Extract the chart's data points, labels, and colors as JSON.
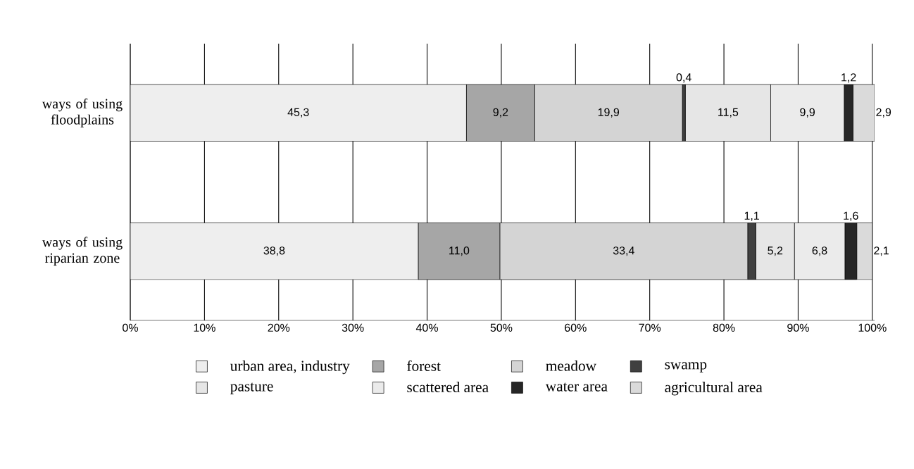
{
  "chart_data": {
    "type": "bar",
    "orientation": "horizontal",
    "stacked": true,
    "categories": [
      "ways of using floodplains",
      "ways of using riparian zone"
    ],
    "series": [
      {
        "name": "urban area, industry",
        "color": "#eeeeee",
        "values": [
          45.3,
          38.8
        ],
        "value_labels": [
          "45,3",
          "38,8"
        ]
      },
      {
        "name": "forest",
        "color": "#a6a6a6",
        "values": [
          9.2,
          11.0
        ],
        "value_labels": [
          "9,2",
          "11,0"
        ]
      },
      {
        "name": "meadow",
        "color": "#d4d4d4",
        "values": [
          19.9,
          33.4
        ],
        "value_labels": [
          "19,9",
          "33,4"
        ]
      },
      {
        "name": "swamp",
        "color": "#404040",
        "values": [
          0.4,
          1.1
        ],
        "value_labels": [
          "0,4",
          "1,1"
        ]
      },
      {
        "name": "pasture",
        "color": "#e6e6e6",
        "values": [
          11.5,
          5.2
        ],
        "value_labels": [
          "11,5",
          "5,2"
        ]
      },
      {
        "name": "scattered area",
        "color": "#ebebeb",
        "values": [
          9.9,
          6.8
        ],
        "value_labels": [
          "9,9",
          "6,8"
        ]
      },
      {
        "name": "water area",
        "color": "#262626",
        "values": [
          1.2,
          1.6
        ],
        "value_labels": [
          "1,2",
          "1,6"
        ]
      },
      {
        "name": "agricultural area",
        "color": "#dadada",
        "values": [
          2.9,
          2.1
        ],
        "value_labels": [
          "2,9",
          "2,1"
        ]
      }
    ],
    "xlim": [
      0,
      100.3
    ],
    "xticks": [
      {
        "value": 0,
        "label": "0%"
      },
      {
        "value": 10,
        "label": "10%"
      },
      {
        "value": 20,
        "label": "20%"
      },
      {
        "value": 30,
        "label": "30%"
      },
      {
        "value": 40,
        "label": "40%"
      },
      {
        "value": 50,
        "label": "50%"
      },
      {
        "value": 60,
        "label": "60%"
      },
      {
        "value": 70,
        "label": "70%"
      },
      {
        "value": 80,
        "label": "80%"
      },
      {
        "value": 90,
        "label": "90%"
      },
      {
        "value": 100,
        "label": "100%"
      }
    ],
    "grid": "x",
    "legend": "bottom"
  }
}
